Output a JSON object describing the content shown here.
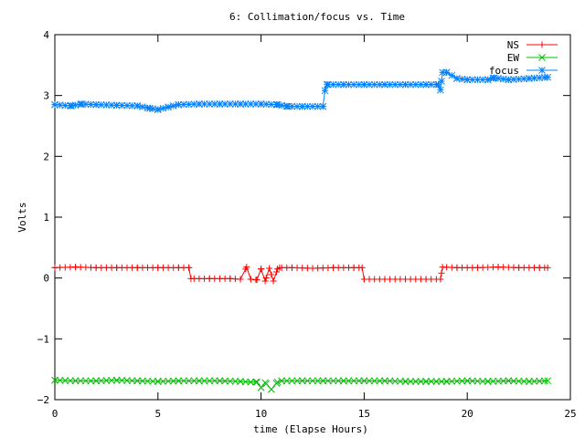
{
  "chart_data": {
    "type": "line",
    "title": "6: Collimation/focus vs. Time",
    "xlabel": "time (Elapse Hours)",
    "ylabel": "Volts",
    "xlim": [
      0,
      25
    ],
    "ylim": [
      -2,
      4
    ],
    "xticks": [
      0,
      5,
      10,
      15,
      20,
      25
    ],
    "yticks": [
      -2,
      -1,
      0,
      1,
      2,
      3,
      4
    ],
    "xtick_labels": [
      "0",
      "5",
      "10",
      "15",
      "20",
      "25"
    ],
    "ytick_labels": [
      "−2",
      "−1",
      "0",
      "1",
      "2",
      "3",
      "4"
    ],
    "grid": false,
    "legend_position": "top-right",
    "series": [
      {
        "name": "NS",
        "color": "#ff0000",
        "marker": "plus",
        "x": [
          0,
          1,
          2,
          3,
          4,
          5,
          6,
          6.5,
          6.6,
          7.5,
          8.5,
          9.0,
          9.3,
          9.5,
          9.8,
          10.0,
          10.2,
          10.4,
          10.6,
          10.8,
          10.9,
          11.5,
          12.5,
          13.5,
          14.5,
          14.9,
          15.0,
          16,
          17,
          18,
          18.7,
          18.8,
          19.5,
          20.5,
          21.5,
          22.5,
          23.5,
          23.9
        ],
        "y": [
          0.17,
          0.18,
          0.17,
          0.17,
          0.17,
          0.17,
          0.17,
          0.17,
          -0.01,
          -0.01,
          -0.01,
          -0.02,
          0.18,
          -0.02,
          -0.03,
          0.15,
          -0.05,
          0.16,
          -0.05,
          0.15,
          0.17,
          0.17,
          0.16,
          0.17,
          0.17,
          0.17,
          -0.02,
          -0.02,
          -0.02,
          -0.02,
          -0.02,
          0.18,
          0.17,
          0.17,
          0.18,
          0.17,
          0.17,
          0.17
        ]
      },
      {
        "name": "EW",
        "color": "#00c000",
        "marker": "cross",
        "x": [
          0,
          1,
          2,
          3,
          4,
          5,
          6,
          7,
          8,
          9,
          9.5,
          9.8,
          10.0,
          10.2,
          10.5,
          10.8,
          11,
          12,
          13,
          14,
          15,
          16,
          17,
          18,
          19,
          20,
          21,
          22,
          23,
          23.9
        ],
        "y": [
          -1.68,
          -1.69,
          -1.69,
          -1.68,
          -1.69,
          -1.7,
          -1.69,
          -1.69,
          -1.69,
          -1.7,
          -1.71,
          -1.71,
          -1.8,
          -1.72,
          -1.83,
          -1.71,
          -1.69,
          -1.69,
          -1.69,
          -1.69,
          -1.69,
          -1.69,
          -1.7,
          -1.7,
          -1.7,
          -1.69,
          -1.7,
          -1.69,
          -1.7,
          -1.69
        ]
      },
      {
        "name": "focus",
        "color": "#0080ff",
        "marker": "star",
        "x": [
          0,
          0.8,
          1.3,
          2,
          3,
          4,
          4.6,
          5.0,
          5.5,
          6,
          7,
          8,
          9,
          10,
          10.8,
          11.3,
          12,
          13.0,
          13.1,
          13.2,
          14,
          15,
          16,
          17,
          18,
          18.6,
          18.7,
          18.8,
          19.0,
          19.5,
          20,
          21,
          21.3,
          22,
          23,
          23.9
        ],
        "y": [
          2.85,
          2.83,
          2.86,
          2.85,
          2.84,
          2.83,
          2.79,
          2.77,
          2.81,
          2.85,
          2.86,
          2.86,
          2.86,
          2.86,
          2.85,
          2.82,
          2.82,
          2.82,
          3.08,
          3.18,
          3.18,
          3.18,
          3.18,
          3.18,
          3.18,
          3.18,
          3.09,
          3.38,
          3.38,
          3.28,
          3.26,
          3.26,
          3.29,
          3.26,
          3.28,
          3.3
        ]
      }
    ]
  }
}
